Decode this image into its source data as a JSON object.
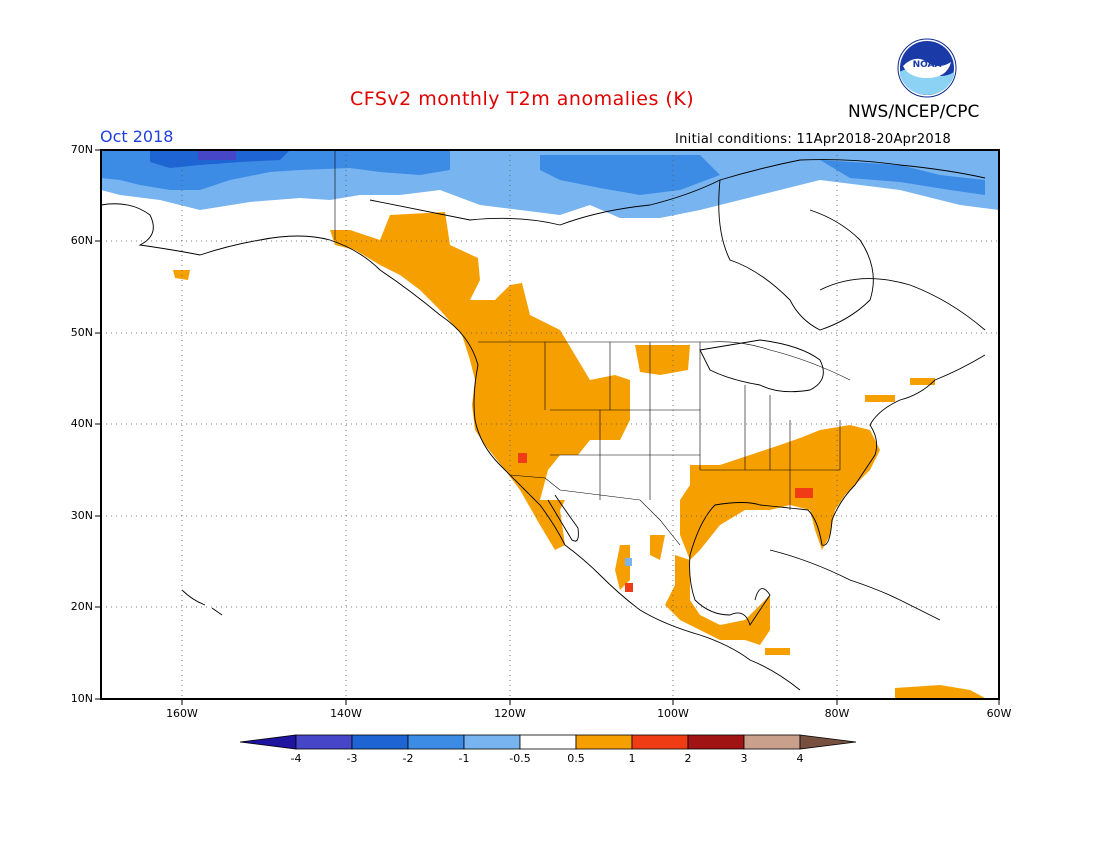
{
  "title": "CFSv2 monthly T2m anomalies (K)",
  "organization": "NWS/NCEP/CPC",
  "logo_text": "NOAA",
  "month": "Oct 2018",
  "initial_conditions": "Initial conditions: 11Apr2018-20Apr2018",
  "lat_labels": [
    "70N",
    "60N",
    "50N",
    "40N",
    "30N",
    "20N",
    "10N"
  ],
  "lon_labels": [
    "160W",
    "140W",
    "120W",
    "100W",
    "80W",
    "60W"
  ],
  "colorbar": {
    "labels": [
      "-4",
      "-3",
      "-2",
      "-1",
      "-0.5",
      "0.5",
      "1",
      "2",
      "3",
      "4"
    ],
    "colors": [
      "#1e14a0",
      "#4646c8",
      "#1e64d2",
      "#3c8ce6",
      "#78b4f0",
      "#ffffff",
      "#f5a000",
      "#f03c14",
      "#a01414",
      "#c8a08c",
      "#785040"
    ]
  },
  "legend_colors": {
    "warm_0.5_1": "#f5a000",
    "warm_1_2": "#f03c14",
    "cold_-1_-0.5": "#78b4f0",
    "cold_-2_-1": "#3c8ce6",
    "cold_-3_-2": "#1e64d2",
    "cold_-4_-3": "#4646c8"
  }
}
